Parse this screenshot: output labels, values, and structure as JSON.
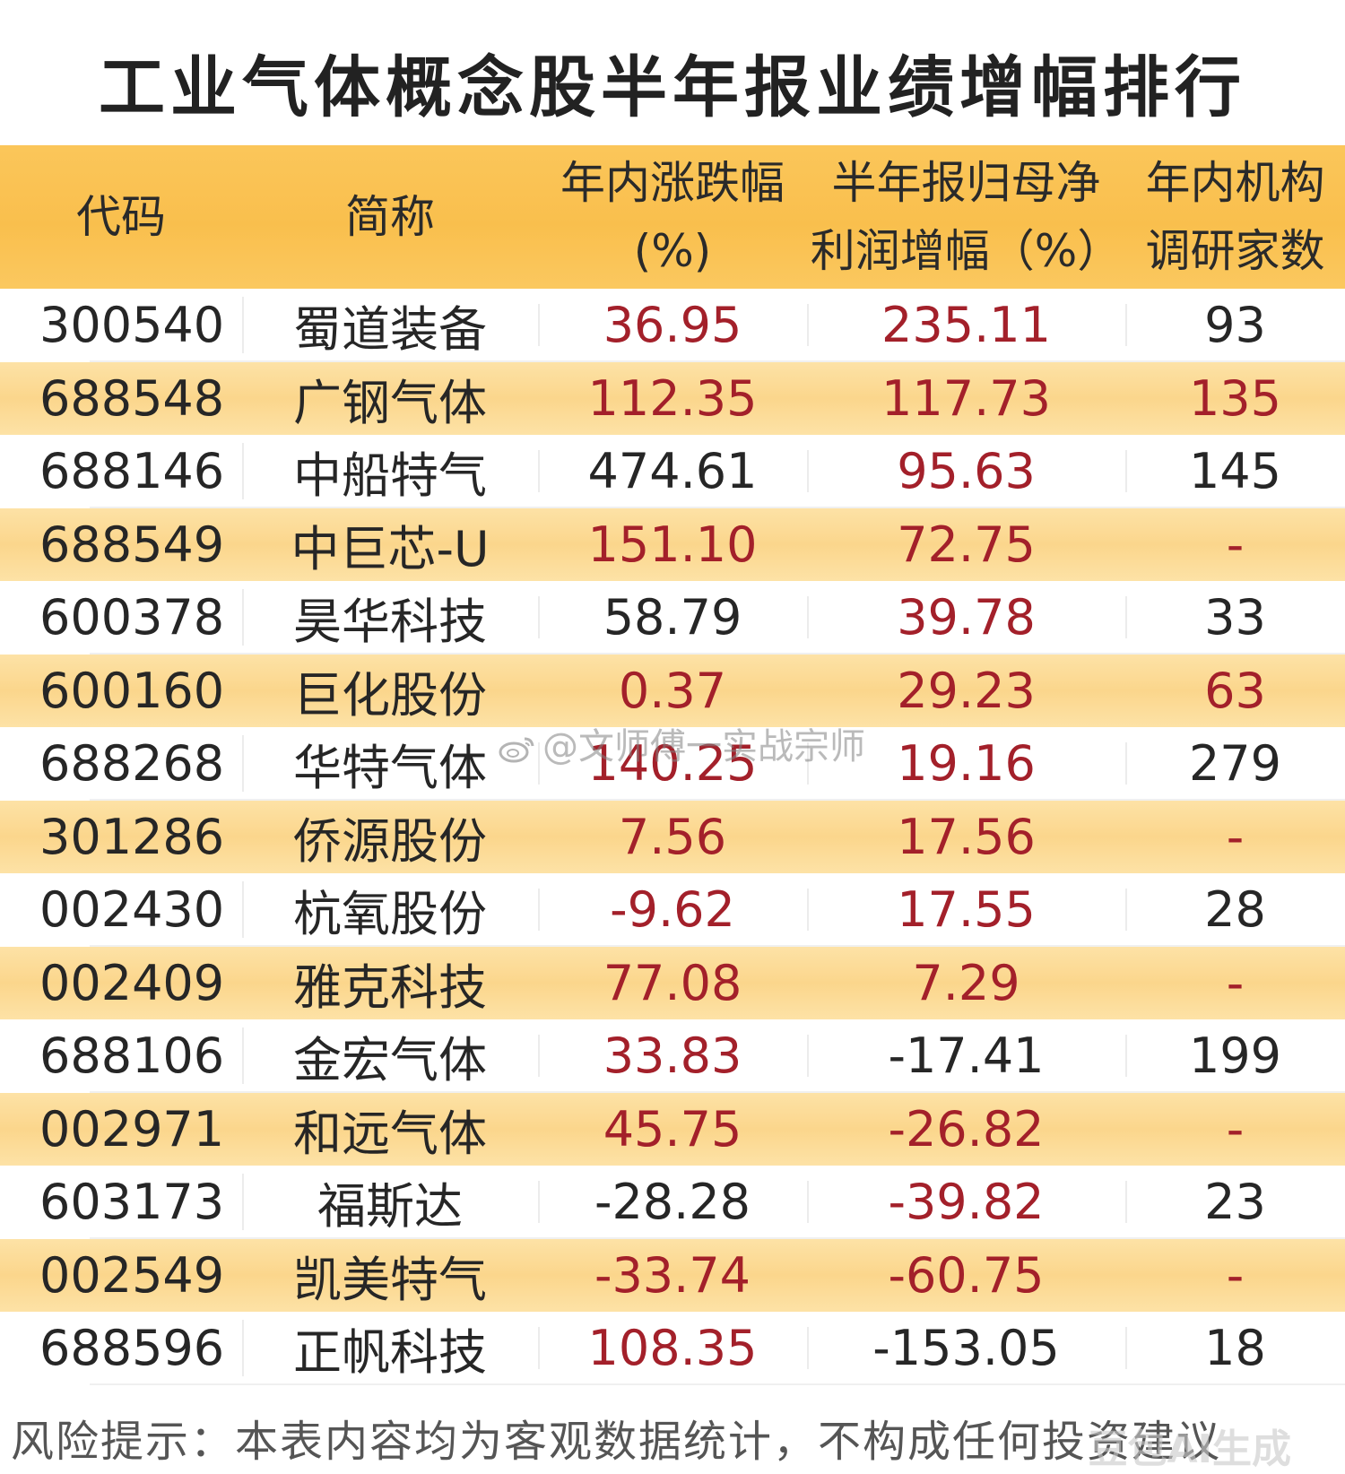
{
  "title": "工业气体概念股半年报业绩增幅排行",
  "header": {
    "code": "代码",
    "name": "简称",
    "change_line1": "年内涨跌幅",
    "change_line2": "(%)",
    "profit_line1": "半年报归母净",
    "profit_line2": "利润增幅（%）",
    "inst_line1": "年内机构",
    "inst_line2": "调研家数"
  },
  "colors": {
    "header_bg": "#f9bf4d",
    "stripe_bg": "#fbd68c",
    "red_value": "#a3202a",
    "black_value": "#262626"
  },
  "rows": [
    {
      "code": "300540",
      "name": "蜀道装备",
      "change": "36.95",
      "profit": "235.11",
      "inst": "93",
      "change_red": true,
      "profit_red": true,
      "inst_red": false
    },
    {
      "code": "688548",
      "name": "广钢气体",
      "change": "112.35",
      "profit": "117.73",
      "inst": "135",
      "change_red": true,
      "profit_red": true,
      "inst_red": true
    },
    {
      "code": "688146",
      "name": "中船特气",
      "change": "474.61",
      "profit": "95.63",
      "inst": "145",
      "change_red": false,
      "profit_red": true,
      "inst_red": false
    },
    {
      "code": "688549",
      "name": "中巨芯-U",
      "change": "151.10",
      "profit": "72.75",
      "inst": "-",
      "change_red": true,
      "profit_red": true,
      "inst_red": true
    },
    {
      "code": "600378",
      "name": "昊华科技",
      "change": "58.79",
      "profit": "39.78",
      "inst": "33",
      "change_red": false,
      "profit_red": true,
      "inst_red": false
    },
    {
      "code": "600160",
      "name": "巨化股份",
      "change": "0.37",
      "profit": "29.23",
      "inst": "63",
      "change_red": true,
      "profit_red": true,
      "inst_red": true
    },
    {
      "code": "688268",
      "name": "华特气体",
      "change": "140.25",
      "profit": "19.16",
      "inst": "279",
      "change_red": true,
      "profit_red": true,
      "inst_red": false
    },
    {
      "code": "301286",
      "name": "侨源股份",
      "change": "7.56",
      "profit": "17.56",
      "inst": "-",
      "change_red": true,
      "profit_red": true,
      "inst_red": true
    },
    {
      "code": "002430",
      "name": "杭氧股份",
      "change": "-9.62",
      "profit": "17.55",
      "inst": "28",
      "change_red": true,
      "profit_red": true,
      "inst_red": false
    },
    {
      "code": "002409",
      "name": "雅克科技",
      "change": "77.08",
      "profit": "7.29",
      "inst": "-",
      "change_red": true,
      "profit_red": true,
      "inst_red": true
    },
    {
      "code": "688106",
      "name": "金宏气体",
      "change": "33.83",
      "profit": "-17.41",
      "inst": "199",
      "change_red": true,
      "profit_red": false,
      "inst_red": false
    },
    {
      "code": "002971",
      "name": "和远气体",
      "change": "45.75",
      "profit": "-26.82",
      "inst": "-",
      "change_red": true,
      "profit_red": true,
      "inst_red": true
    },
    {
      "code": "603173",
      "name": "福斯达",
      "change": "-28.28",
      "profit": "-39.82",
      "inst": "23",
      "change_red": false,
      "profit_red": true,
      "inst_red": false
    },
    {
      "code": "002549",
      "name": "凯美特气",
      "change": "-33.74",
      "profit": "-60.75",
      "inst": "-",
      "change_red": true,
      "profit_red": true,
      "inst_red": true
    },
    {
      "code": "688596",
      "name": "正帆科技",
      "change": "108.35",
      "profit": "-153.05",
      "inst": "18",
      "change_red": true,
      "profit_red": false,
      "inst_red": false
    }
  ],
  "watermark": "@文师傅一实战宗师",
  "footer": "风险提示：本表内容均为客观数据统计，不构成任何投资建议",
  "corner_mark": "豆包AI生成"
}
